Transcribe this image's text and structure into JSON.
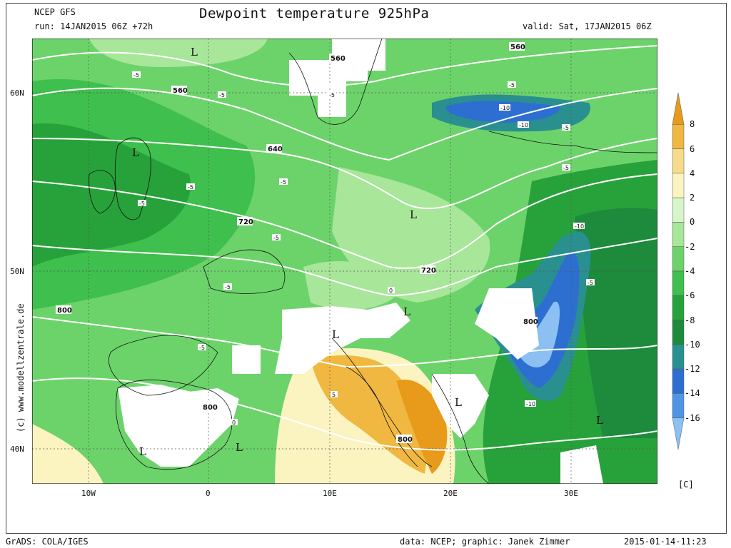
{
  "header": {
    "model": "NCEP GFS",
    "run": "run: 14JAN2015 06Z +72h",
    "title": "Dewpoint temperature 925hPa",
    "valid": "valid: Sat, 17JAN2015 06Z"
  },
  "axes": {
    "lat_labels": [
      "60N",
      "50N",
      "40N"
    ],
    "lon_labels": [
      "10W",
      "0",
      "10E",
      "20E",
      "30E"
    ]
  },
  "colorbar": {
    "labels": [
      "8",
      "6",
      "4",
      "2",
      "0",
      "-2",
      "-4",
      "-6",
      "-8",
      "-10",
      "-12",
      "-14",
      "-16"
    ],
    "unit": "[C]",
    "colors": [
      "#e89a1a",
      "#f0b840",
      "#f6dc8a",
      "#fbf4c0",
      "#d6f5c8",
      "#a8e69a",
      "#6cd36a",
      "#3fbf4d",
      "#27a23a",
      "#1d8a3c",
      "#2a8f8f",
      "#2d6fd1",
      "#4f95e6",
      "#8cc0f2"
    ]
  },
  "contour_labels": [
    "560",
    "640",
    "720",
    "800",
    "-5",
    "-10",
    "0",
    "5"
  ],
  "pressure_labels": [
    "L"
  ],
  "footer": {
    "left": "GrADS: COLA/IGES",
    "data_credit": "data: NCEP; graphic: Janek Zimmer",
    "timestamp": "2015-01-14-11:23"
  },
  "side_credit": "(c) www.modellzentrale.de"
}
